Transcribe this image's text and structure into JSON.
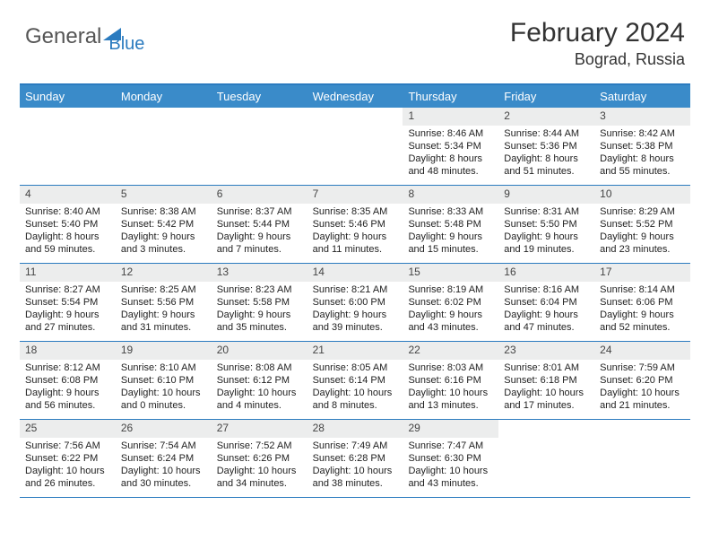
{
  "brand": {
    "part1": "General",
    "part2": "Blue"
  },
  "title": "February 2024",
  "location": "Bograd, Russia",
  "style": {
    "header_bg": "#3a8bc9",
    "border_color": "#2b7bbf",
    "daynum_bg": "#eceded",
    "text_color": "#222222",
    "font_family": "Arial",
    "weekday_fontsize": 13,
    "day_fontsize": 11,
    "title_fontsize": 30,
    "location_fontsize": 18
  },
  "weekdays": [
    "Sunday",
    "Monday",
    "Tuesday",
    "Wednesday",
    "Thursday",
    "Friday",
    "Saturday"
  ],
  "weeks": [
    [
      {
        "num": "",
        "sunrise": "",
        "sunset": "",
        "daylight": ""
      },
      {
        "num": "",
        "sunrise": "",
        "sunset": "",
        "daylight": ""
      },
      {
        "num": "",
        "sunrise": "",
        "sunset": "",
        "daylight": ""
      },
      {
        "num": "",
        "sunrise": "",
        "sunset": "",
        "daylight": ""
      },
      {
        "num": "1",
        "sunrise": "Sunrise: 8:46 AM",
        "sunset": "Sunset: 5:34 PM",
        "daylight": "Daylight: 8 hours and 48 minutes."
      },
      {
        "num": "2",
        "sunrise": "Sunrise: 8:44 AM",
        "sunset": "Sunset: 5:36 PM",
        "daylight": "Daylight: 8 hours and 51 minutes."
      },
      {
        "num": "3",
        "sunrise": "Sunrise: 8:42 AM",
        "sunset": "Sunset: 5:38 PM",
        "daylight": "Daylight: 8 hours and 55 minutes."
      }
    ],
    [
      {
        "num": "4",
        "sunrise": "Sunrise: 8:40 AM",
        "sunset": "Sunset: 5:40 PM",
        "daylight": "Daylight: 8 hours and 59 minutes."
      },
      {
        "num": "5",
        "sunrise": "Sunrise: 8:38 AM",
        "sunset": "Sunset: 5:42 PM",
        "daylight": "Daylight: 9 hours and 3 minutes."
      },
      {
        "num": "6",
        "sunrise": "Sunrise: 8:37 AM",
        "sunset": "Sunset: 5:44 PM",
        "daylight": "Daylight: 9 hours and 7 minutes."
      },
      {
        "num": "7",
        "sunrise": "Sunrise: 8:35 AM",
        "sunset": "Sunset: 5:46 PM",
        "daylight": "Daylight: 9 hours and 11 minutes."
      },
      {
        "num": "8",
        "sunrise": "Sunrise: 8:33 AM",
        "sunset": "Sunset: 5:48 PM",
        "daylight": "Daylight: 9 hours and 15 minutes."
      },
      {
        "num": "9",
        "sunrise": "Sunrise: 8:31 AM",
        "sunset": "Sunset: 5:50 PM",
        "daylight": "Daylight: 9 hours and 19 minutes."
      },
      {
        "num": "10",
        "sunrise": "Sunrise: 8:29 AM",
        "sunset": "Sunset: 5:52 PM",
        "daylight": "Daylight: 9 hours and 23 minutes."
      }
    ],
    [
      {
        "num": "11",
        "sunrise": "Sunrise: 8:27 AM",
        "sunset": "Sunset: 5:54 PM",
        "daylight": "Daylight: 9 hours and 27 minutes."
      },
      {
        "num": "12",
        "sunrise": "Sunrise: 8:25 AM",
        "sunset": "Sunset: 5:56 PM",
        "daylight": "Daylight: 9 hours and 31 minutes."
      },
      {
        "num": "13",
        "sunrise": "Sunrise: 8:23 AM",
        "sunset": "Sunset: 5:58 PM",
        "daylight": "Daylight: 9 hours and 35 minutes."
      },
      {
        "num": "14",
        "sunrise": "Sunrise: 8:21 AM",
        "sunset": "Sunset: 6:00 PM",
        "daylight": "Daylight: 9 hours and 39 minutes."
      },
      {
        "num": "15",
        "sunrise": "Sunrise: 8:19 AM",
        "sunset": "Sunset: 6:02 PM",
        "daylight": "Daylight: 9 hours and 43 minutes."
      },
      {
        "num": "16",
        "sunrise": "Sunrise: 8:16 AM",
        "sunset": "Sunset: 6:04 PM",
        "daylight": "Daylight: 9 hours and 47 minutes."
      },
      {
        "num": "17",
        "sunrise": "Sunrise: 8:14 AM",
        "sunset": "Sunset: 6:06 PM",
        "daylight": "Daylight: 9 hours and 52 minutes."
      }
    ],
    [
      {
        "num": "18",
        "sunrise": "Sunrise: 8:12 AM",
        "sunset": "Sunset: 6:08 PM",
        "daylight": "Daylight: 9 hours and 56 minutes."
      },
      {
        "num": "19",
        "sunrise": "Sunrise: 8:10 AM",
        "sunset": "Sunset: 6:10 PM",
        "daylight": "Daylight: 10 hours and 0 minutes."
      },
      {
        "num": "20",
        "sunrise": "Sunrise: 8:08 AM",
        "sunset": "Sunset: 6:12 PM",
        "daylight": "Daylight: 10 hours and 4 minutes."
      },
      {
        "num": "21",
        "sunrise": "Sunrise: 8:05 AM",
        "sunset": "Sunset: 6:14 PM",
        "daylight": "Daylight: 10 hours and 8 minutes."
      },
      {
        "num": "22",
        "sunrise": "Sunrise: 8:03 AM",
        "sunset": "Sunset: 6:16 PM",
        "daylight": "Daylight: 10 hours and 13 minutes."
      },
      {
        "num": "23",
        "sunrise": "Sunrise: 8:01 AM",
        "sunset": "Sunset: 6:18 PM",
        "daylight": "Daylight: 10 hours and 17 minutes."
      },
      {
        "num": "24",
        "sunrise": "Sunrise: 7:59 AM",
        "sunset": "Sunset: 6:20 PM",
        "daylight": "Daylight: 10 hours and 21 minutes."
      }
    ],
    [
      {
        "num": "25",
        "sunrise": "Sunrise: 7:56 AM",
        "sunset": "Sunset: 6:22 PM",
        "daylight": "Daylight: 10 hours and 26 minutes."
      },
      {
        "num": "26",
        "sunrise": "Sunrise: 7:54 AM",
        "sunset": "Sunset: 6:24 PM",
        "daylight": "Daylight: 10 hours and 30 minutes."
      },
      {
        "num": "27",
        "sunrise": "Sunrise: 7:52 AM",
        "sunset": "Sunset: 6:26 PM",
        "daylight": "Daylight: 10 hours and 34 minutes."
      },
      {
        "num": "28",
        "sunrise": "Sunrise: 7:49 AM",
        "sunset": "Sunset: 6:28 PM",
        "daylight": "Daylight: 10 hours and 38 minutes."
      },
      {
        "num": "29",
        "sunrise": "Sunrise: 7:47 AM",
        "sunset": "Sunset: 6:30 PM",
        "daylight": "Daylight: 10 hours and 43 minutes."
      },
      {
        "num": "",
        "sunrise": "",
        "sunset": "",
        "daylight": ""
      },
      {
        "num": "",
        "sunrise": "",
        "sunset": "",
        "daylight": ""
      }
    ]
  ]
}
